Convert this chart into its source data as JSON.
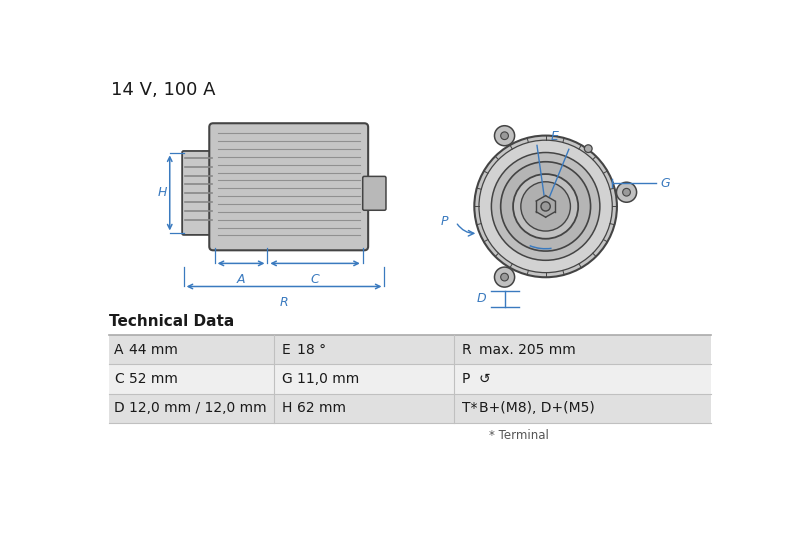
{
  "title": "14 V, 100 A",
  "title_fontsize": 13,
  "bg_color": "#ffffff",
  "table_section_title": "Technical Data",
  "table_rows": [
    [
      "A",
      "44 mm",
      "E",
      "18 °",
      "R",
      "max. 205 mm"
    ],
    [
      "C",
      "52 mm",
      "G",
      "11,0 mm",
      "P",
      "↺"
    ],
    [
      "D",
      "12,0 mm / 12,0 mm",
      "H",
      "62 mm",
      "T*",
      "B+(M8), D+(M5)"
    ]
  ],
  "table_note": "* Terminal",
  "dim_color": "#3a7abf",
  "draw_color": "#444444",
  "row_bg_colors": [
    "#e0e0e0",
    "#efefef",
    "#e0e0e0"
  ]
}
